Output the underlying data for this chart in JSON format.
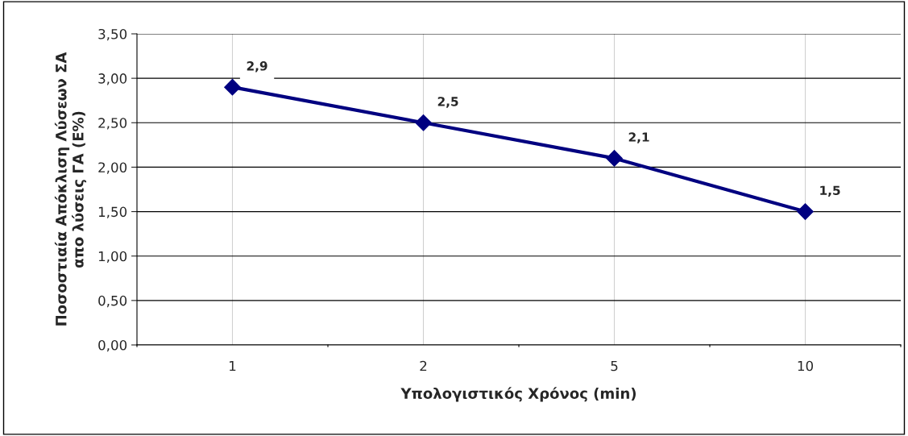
{
  "chart_data": {
    "type": "line",
    "xlabel": "Υπολογιστικός Χρόνος (min)",
    "ylabel": "Ποσοστιαία Απόκλιση Λύσεων ΣΑ\nαπο λύσεις ΓΑ (Ε%)",
    "categories": [
      "1",
      "2",
      "5",
      "10"
    ],
    "series": [
      {
        "color": "#000080",
        "values": [
          2.9,
          2.5,
          2.1,
          1.5
        ],
        "value_labels": [
          "2,9",
          "2,5",
          "2,1",
          "1,5"
        ]
      }
    ],
    "ylim": [
      0,
      3.5
    ],
    "yticks": [
      {
        "value": 0,
        "label": "0,00"
      },
      {
        "value": 0.5,
        "label": "0,50"
      },
      {
        "value": 1,
        "label": "1,00"
      },
      {
        "value": 1.5,
        "label": "1,50"
      },
      {
        "value": 2,
        "label": "2,00"
      },
      {
        "value": 2.5,
        "label": "2,50"
      },
      {
        "value": 3,
        "label": "3,00"
      },
      {
        "value": 3.5,
        "label": "3,50"
      }
    ],
    "grid": true,
    "marker": "diamond",
    "line_style": "solid",
    "legend": false
  }
}
